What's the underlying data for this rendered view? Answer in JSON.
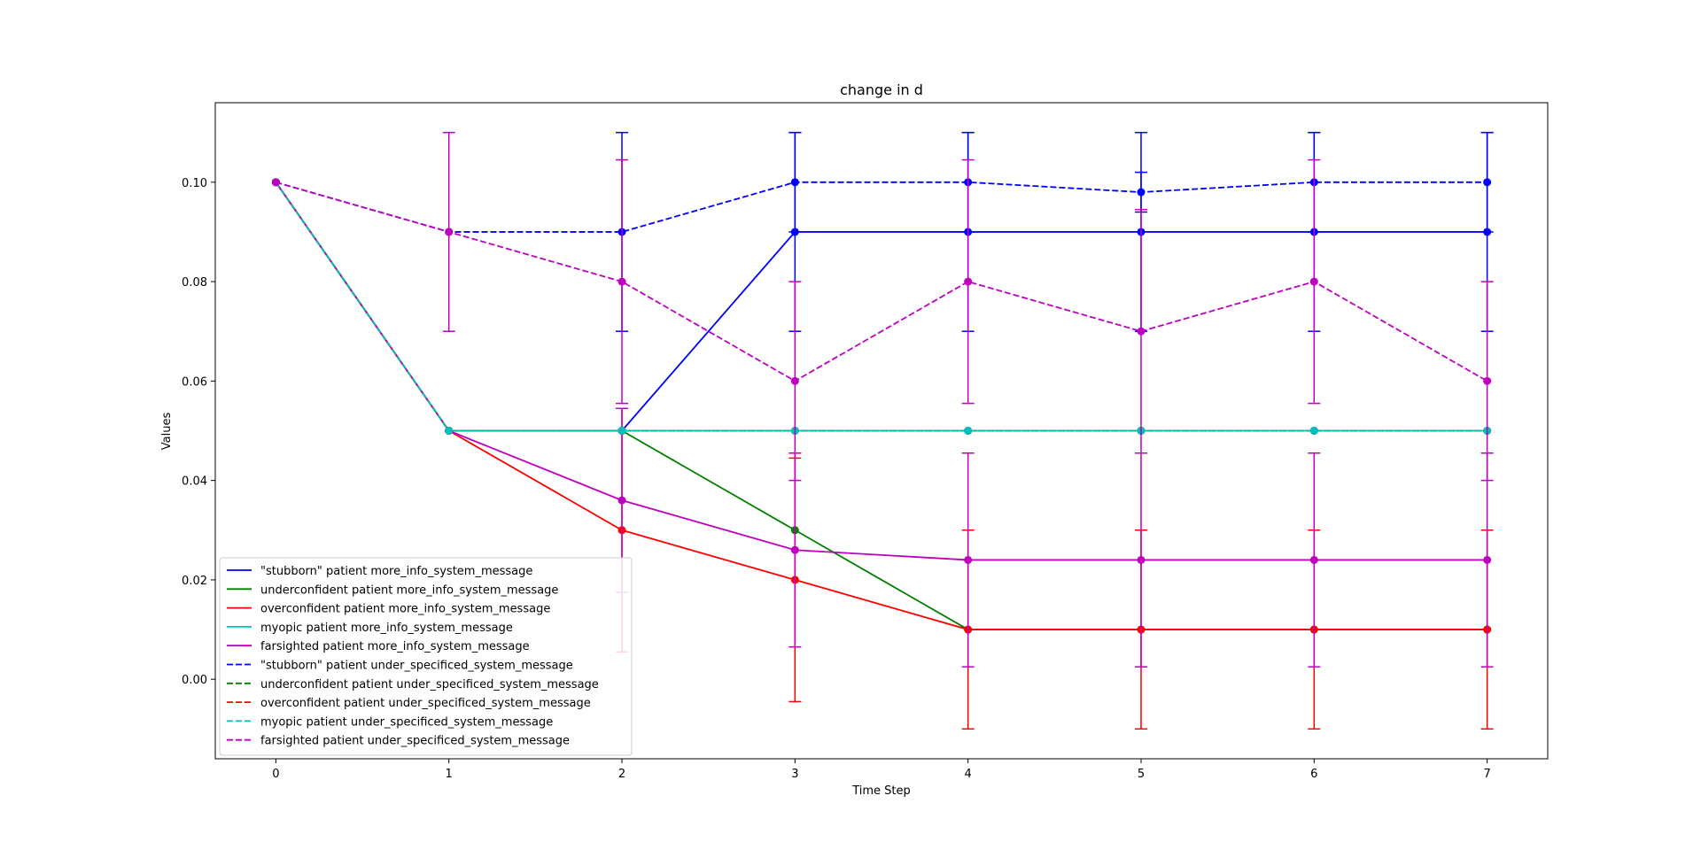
{
  "chart_data": {
    "type": "line",
    "title": "change in d",
    "xlabel": "Time Step",
    "ylabel": "Values",
    "x": [
      0,
      1,
      2,
      3,
      4,
      5,
      6,
      7
    ],
    "xticks": [
      "0",
      "1",
      "2",
      "3",
      "4",
      "5",
      "6",
      "7"
    ],
    "yticks": [
      "0.00",
      "0.02",
      "0.04",
      "0.06",
      "0.08",
      "0.10"
    ],
    "xlim": [
      -0.35,
      7.35
    ],
    "ylim": [
      -0.016,
      0.116
    ],
    "grid": false,
    "legend_position": "lower-left",
    "series": [
      {
        "name": "\"stubborn\" patient more_info_system_message",
        "color": "#0000ff",
        "dash": "solid",
        "values": [
          0.1,
          0.05,
          0.05,
          0.09,
          0.09,
          0.09,
          0.09,
          0.09
        ],
        "errors": [
          0,
          0,
          0,
          0.02,
          0.02,
          0.02,
          0.02,
          0.02
        ]
      },
      {
        "name": "underconfident patient more_info_system_message",
        "color": "#008000",
        "dash": "solid",
        "values": [
          0.1,
          0.05,
          0.05,
          0.03,
          0.01,
          0.01,
          0.01,
          0.01
        ],
        "errors": [
          0,
          0,
          0,
          0,
          0,
          0,
          0,
          0
        ]
      },
      {
        "name": "overconfident patient more_info_system_message",
        "color": "#ff0000",
        "dash": "solid",
        "values": [
          0.1,
          0.05,
          0.03,
          0.02,
          0.01,
          0.01,
          0.01,
          0.01
        ],
        "errors": [
          0,
          0,
          0.0245,
          0.0245,
          0.02,
          0.02,
          0.02,
          0.02
        ]
      },
      {
        "name": "myopic patient more_info_system_message",
        "color": "#00bfbf",
        "dash": "solid",
        "values": [
          0.1,
          0.05,
          0.05,
          0.05,
          0.05,
          0.05,
          0.05,
          0.05
        ],
        "errors": [
          0,
          0,
          0,
          0,
          0,
          0,
          0,
          0
        ]
      },
      {
        "name": "farsighted patient more_info_system_message",
        "color": "#bf00bf",
        "dash": "solid",
        "values": [
          0.1,
          0.05,
          0.036,
          0.026,
          0.024,
          0.024,
          0.024,
          0.024
        ],
        "errors": [
          0,
          0,
          0.0185,
          0.0195,
          0.0215,
          0.0215,
          0.0215,
          0.0215
        ]
      },
      {
        "name": "\"stubborn\" patient under_specificed_system_message",
        "color": "#0000ff",
        "dash": "dashed",
        "values": [
          0.1,
          0.09,
          0.09,
          0.1,
          0.1,
          0.098,
          0.1,
          0.1
        ],
        "errors": [
          0,
          0,
          0.02,
          0.01,
          0.01,
          0.004,
          0.01,
          0.01
        ]
      },
      {
        "name": "underconfident patient under_specificed_system_message",
        "color": "#008000",
        "dash": "dashed",
        "values": [
          0.1,
          0.05,
          0.05,
          0.05,
          0.05,
          0.05,
          0.05,
          0.05
        ],
        "errors": [
          0,
          0,
          0,
          0,
          0,
          0,
          0,
          0
        ]
      },
      {
        "name": "overconfident patient under_specificed_system_message",
        "color": "#ff0000",
        "dash": "dashed",
        "values": [
          0.1,
          0.05,
          0.05,
          0.05,
          0.05,
          0.05,
          0.05,
          0.05
        ],
        "errors": [
          0,
          0,
          0,
          0,
          0,
          0,
          0,
          0
        ]
      },
      {
        "name": "myopic patient under_specificed_system_message",
        "color": "#00bfbf",
        "dash": "dashed",
        "values": [
          0.1,
          0.05,
          0.05,
          0.05,
          0.05,
          0.05,
          0.05,
          0.05
        ],
        "errors": [
          0,
          0,
          0,
          0,
          0,
          0,
          0,
          0
        ]
      },
      {
        "name": "farsighted patient under_specificed_system_message",
        "color": "#bf00bf",
        "dash": "dashed",
        "values": [
          0.1,
          0.09,
          0.08,
          0.06,
          0.08,
          0.07,
          0.08,
          0.06
        ],
        "errors": [
          0,
          0.02,
          0.0245,
          0.02,
          0.0245,
          0.0245,
          0.0245,
          0.02
        ]
      }
    ]
  }
}
